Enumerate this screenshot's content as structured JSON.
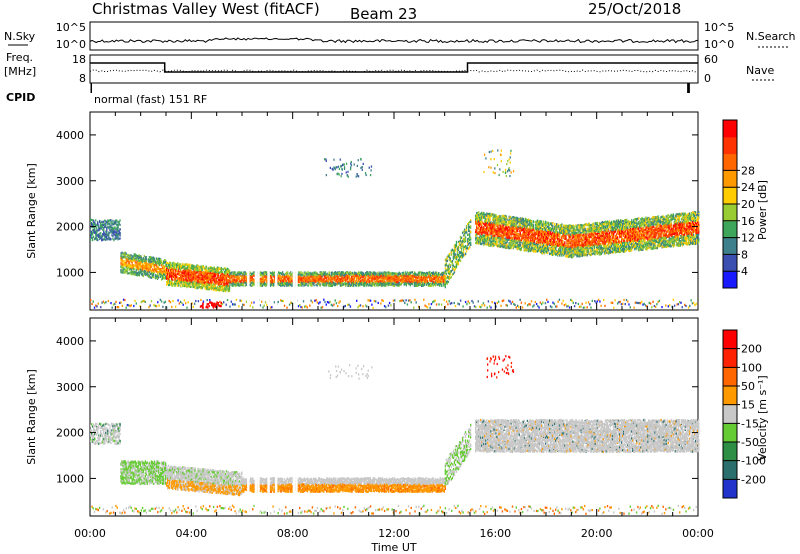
{
  "header": {
    "station": "Christmas Valley West (fitACF)",
    "beam": "Beam 23",
    "date": "25/Oct/2018"
  },
  "noise_panel": {
    "left_label": "N.Sky",
    "right_label": "N.Search",
    "left_ticks": [
      "10^5",
      "10^0"
    ],
    "right_ticks": [
      "10^5",
      "10^0"
    ]
  },
  "freq_panel": {
    "left_label_top": "Freq.",
    "left_label_unit": "[MHz]",
    "left_ticks": [
      "18",
      "8"
    ],
    "right_label": "Nave",
    "right_ticks": [
      "60",
      "0"
    ],
    "cpid_label": "CPID",
    "cpid_text": "normal (fast) 151 RF"
  },
  "chart_data": [
    {
      "type": "heatmap",
      "title": "",
      "ylabel": "Slant Range [km]",
      "xlabel": "",
      "x_ticks": [
        "00:00",
        "04:00",
        "08:00",
        "12:00",
        "16:00",
        "20:00",
        "00:00"
      ],
      "y_ticks": [
        1000,
        2000,
        3000,
        4000
      ],
      "xlim_hours": [
        0,
        24
      ],
      "ylim": [
        180,
        4500
      ],
      "colorbar": {
        "label": "Power [dB]",
        "ticks": [
          "4",
          "8",
          "12",
          "16",
          "20",
          "24",
          "28"
        ],
        "colors": [
          "#1a1aff",
          "#3b4fb0",
          "#3d7f8a",
          "#3da65a",
          "#99cc33",
          "#ffcc00",
          "#ff9900",
          "#ff6600",
          "#ff3300",
          "#ff0000"
        ]
      }
    },
    {
      "type": "heatmap",
      "title": "",
      "ylabel": "Slant Range [km]",
      "xlabel": "Time UT",
      "x_ticks": [
        "00:00",
        "04:00",
        "08:00",
        "12:00",
        "16:00",
        "20:00",
        "00:00"
      ],
      "y_ticks": [
        1000,
        2000,
        3000,
        4000
      ],
      "xlim_hours": [
        0,
        24
      ],
      "ylim": [
        180,
        4500
      ],
      "colorbar": {
        "label": "Velocity [m s⁻¹]",
        "ticks": [
          "200",
          "100",
          "50",
          "15",
          "-15",
          "-50",
          "-100",
          "-200"
        ],
        "colors": [
          "#2233cc",
          "#2a6e6e",
          "#2d8f46",
          "#66cc33",
          "#c8c8c8",
          "#ff9900",
          "#ff6600",
          "#ff2200",
          "#ff0000"
        ]
      }
    }
  ]
}
